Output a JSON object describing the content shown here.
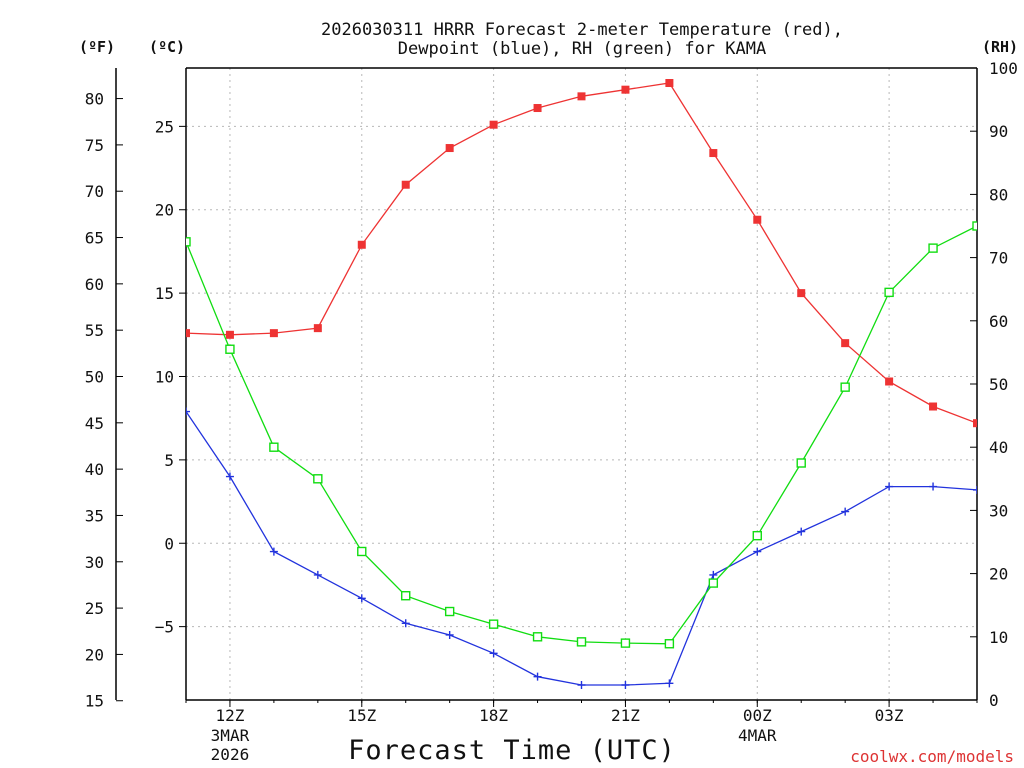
{
  "chart_data": {
    "type": "line",
    "title": "2026030311 HRRR Forecast 2-meter Temperature (red),",
    "subtitle": "Dewpoint (blue), RH (green) for KAMA",
    "xlabel": "Forecast Time (UTC)",
    "watermark": "coolwx.com/models",
    "colors": {
      "temperature": "#ee3333",
      "dewpoint": "#2233dd",
      "rh": "#11dd11",
      "watermark": "#dd3333"
    },
    "units": {
      "fahrenheit": "(ºF)",
      "celsius": "(ºC)",
      "rh": "(RH)"
    },
    "x_hours": [
      11,
      12,
      13,
      14,
      15,
      16,
      17,
      18,
      19,
      20,
      21,
      22,
      23,
      24,
      25,
      26,
      27,
      28,
      29
    ],
    "xlim": [
      11,
      29
    ],
    "x_ticks": [
      {
        "hour": 12,
        "label": "12Z",
        "date": "3MAR",
        "year": "2026"
      },
      {
        "hour": 15,
        "label": "15Z"
      },
      {
        "hour": 18,
        "label": "18Z"
      },
      {
        "hour": 21,
        "label": "21Z"
      },
      {
        "hour": 24,
        "label": "00Z",
        "date": "4MAR"
      },
      {
        "hour": 27,
        "label": "03Z"
      }
    ],
    "celsius_axis": {
      "ylim": [
        -9.4,
        28.5
      ],
      "ticks": [
        -5,
        0,
        5,
        10,
        15,
        20,
        25
      ]
    },
    "fahrenheit_ticks": [
      15,
      20,
      25,
      30,
      35,
      40,
      45,
      50,
      55,
      60,
      65,
      70,
      75,
      80
    ],
    "rh_axis": {
      "ylim": [
        0,
        100
      ],
      "ticks": [
        0,
        10,
        20,
        30,
        40,
        50,
        60,
        70,
        80,
        90,
        100
      ]
    },
    "series": [
      {
        "name": "Temperature",
        "axis": "celsius",
        "marker": "filled-square",
        "values": [
          12.6,
          12.5,
          12.6,
          12.9,
          17.9,
          21.5,
          23.7,
          25.1,
          26.1,
          26.8,
          27.2,
          27.6,
          23.4,
          19.4,
          15.0,
          12.0,
          9.7,
          8.2,
          7.2
        ]
      },
      {
        "name": "Dewpoint",
        "axis": "celsius",
        "marker": "plus",
        "values": [
          7.9,
          4.0,
          -0.5,
          -1.9,
          -3.3,
          -4.8,
          -5.5,
          -6.6,
          -8.0,
          -8.5,
          -8.5,
          -8.4,
          -1.9,
          -0.5,
          0.7,
          1.9,
          3.4,
          3.4,
          3.2
        ]
      },
      {
        "name": "RH",
        "axis": "rh",
        "marker": "open-square",
        "values": [
          72.5,
          55.5,
          40.0,
          35.0,
          23.5,
          16.5,
          14.0,
          12.0,
          10.0,
          9.2,
          9.0,
          8.9,
          18.5,
          26.0,
          37.5,
          49.5,
          64.5,
          71.5,
          75.0
        ]
      }
    ]
  }
}
